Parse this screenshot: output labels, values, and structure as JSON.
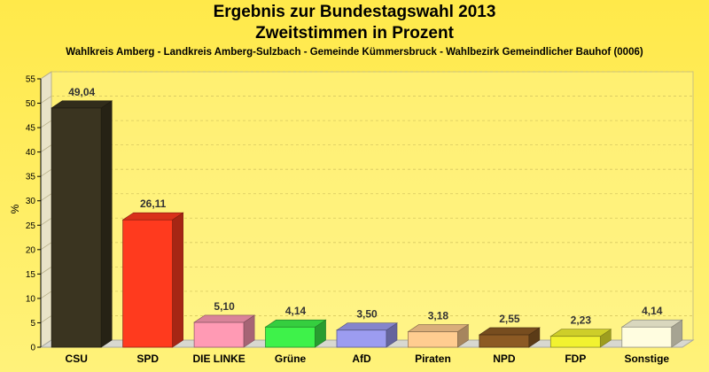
{
  "chart_data": {
    "type": "bar",
    "title": "Ergebnis zur Bundestagswahl 2013",
    "subtitle": "Zweitstimmen in Prozent",
    "caption": "Wahlkreis Amberg - Landkreis Amberg-Sulzbach - Gemeinde Kümmersbruck - Wahlbezirk Gemeindlicher Bauhof (0006)",
    "ylabel": "%",
    "ylim": [
      0,
      55
    ],
    "yticks": [
      0,
      5,
      10,
      15,
      20,
      25,
      30,
      35,
      40,
      45,
      50,
      55
    ],
    "grid": true,
    "categories": [
      "CSU",
      "SPD",
      "DIE LINKE",
      "Grüne",
      "AfD",
      "Piraten",
      "NPD",
      "FDP",
      "Sonstige"
    ],
    "values": [
      49.04,
      26.11,
      5.1,
      4.14,
      3.5,
      3.18,
      2.55,
      2.23,
      4.14
    ],
    "value_labels": [
      "49,04",
      "26,11",
      "5,10",
      "4,14",
      "3,50",
      "3,18",
      "2,55",
      "2,23",
      "4,14"
    ],
    "colors": [
      "#3a3420",
      "#ff3a1e",
      "#ff9ab4",
      "#3ef24a",
      "#9c9cf0",
      "#ffcc90",
      "#8c5a24",
      "#f2f230",
      "#fffde0"
    ]
  }
}
